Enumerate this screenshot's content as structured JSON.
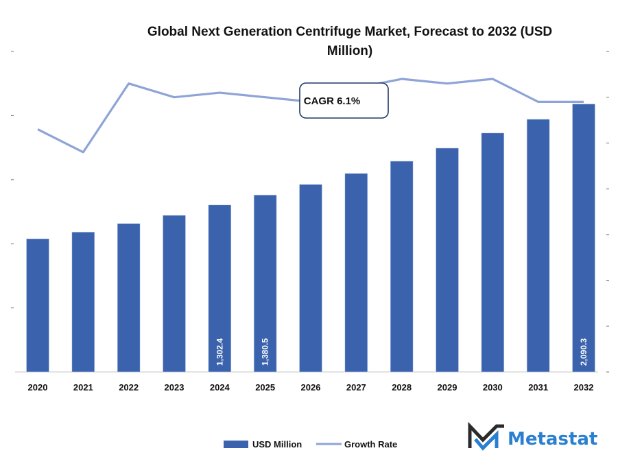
{
  "chart_data": {
    "type": "bar",
    "title_lines": [
      "Global Next Generation Centrifuge Market, Forecast to 2032 (USD",
      "Million)"
    ],
    "categories": [
      "2020",
      "2021",
      "2022",
      "2023",
      "2024",
      "2025",
      "2026",
      "2027",
      "2028",
      "2029",
      "2030",
      "2031",
      "2032"
    ],
    "series": [
      {
        "name": "USD Million",
        "type": "bar",
        "axis": "left",
        "color": "#3b63ad",
        "values": [
          1039,
          1091,
          1158,
          1222,
          1302.4,
          1380.5,
          1463,
          1549,
          1644,
          1746,
          1864,
          1971,
          2090.3
        ]
      },
      {
        "name": "Growth Rate",
        "type": "line",
        "axis": "right",
        "unit": "%",
        "color": "#8ea3d8",
        "values": [
          5.3,
          4.8,
          6.3,
          6.0,
          6.1,
          6.0,
          5.9,
          6.2,
          6.4,
          6.3,
          6.4,
          5.9,
          5.9
        ]
      }
    ],
    "data_labels": [
      {
        "category": "2024",
        "text": "1,302.4"
      },
      {
        "category": "2025",
        "text": "1,380.5"
      },
      {
        "category": "2032",
        "text": "2,090.3"
      }
    ],
    "xlabel": "",
    "ylabel": "",
    "ylim_left": [
      0,
      2500
    ],
    "ylim_right": [
      0,
      7
    ],
    "y_tick_labels_shown": false,
    "grid": false,
    "legend": {
      "position": "bottom",
      "entries": [
        "USD Million",
        "Growth Rate"
      ]
    },
    "annotation": {
      "text": "CAGR 6.1%"
    }
  },
  "brand": {
    "name": "Metastat",
    "color": "#2a7fd0",
    "mark_color": "#2b2b2b"
  }
}
